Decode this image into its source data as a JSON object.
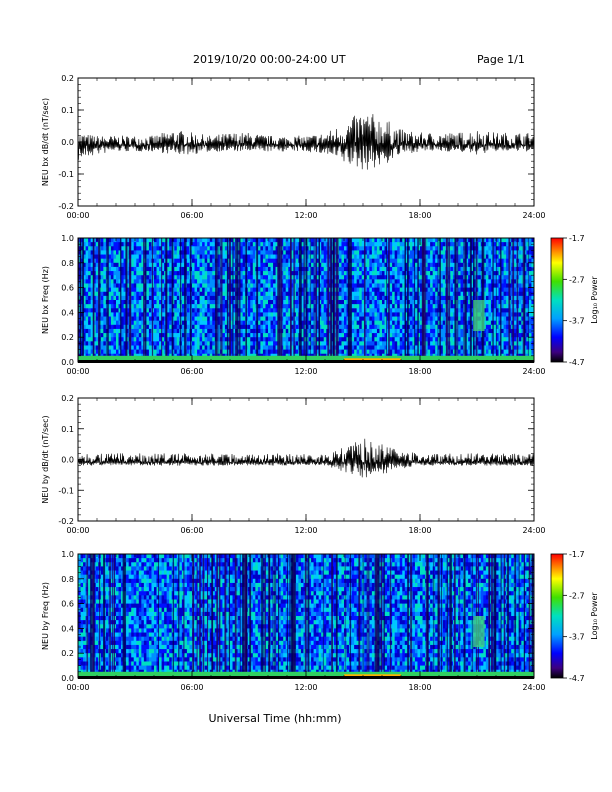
{
  "header": {
    "title": "2019/10/20  00:00-24:00 UT",
    "page": "Page 1/1"
  },
  "xaxis_title": "Universal Time (hh:mm)",
  "chart_data": [
    {
      "type": "line",
      "ylabel": "NEU bx dB/dt (nT/sec)",
      "xlim": [
        0,
        24
      ],
      "ylim": [
        -0.2,
        0.2
      ],
      "x_ticks": [
        "00:00",
        "06:00",
        "12:00",
        "18:00",
        "24:00"
      ],
      "y_ticks": [
        "-0.2",
        "-0.1",
        "0.0",
        "0.1",
        "0.2"
      ],
      "x": [
        0,
        1,
        2,
        3,
        4,
        5,
        6,
        7,
        8,
        9,
        10,
        11,
        12,
        13,
        14,
        15,
        16,
        17,
        18,
        19,
        20,
        21,
        22,
        23,
        24
      ],
      "upper_envelope": [
        0.03,
        0.02,
        0.02,
        0.02,
        0.02,
        0.04,
        0.03,
        0.02,
        0.03,
        0.03,
        0.02,
        0.02,
        0.02,
        0.03,
        0.06,
        0.1,
        0.08,
        0.04,
        0.03,
        0.03,
        0.03,
        0.04,
        0.03,
        0.03,
        0.03
      ],
      "lower_envelope": [
        -0.06,
        -0.04,
        -0.03,
        -0.03,
        -0.03,
        -0.04,
        -0.04,
        -0.03,
        -0.03,
        -0.03,
        -0.03,
        -0.03,
        -0.03,
        -0.04,
        -0.07,
        -0.09,
        -0.08,
        -0.04,
        -0.03,
        -0.03,
        -0.03,
        -0.04,
        -0.03,
        -0.03,
        -0.03
      ]
    },
    {
      "type": "heatmap",
      "ylabel": "NEU bx Freq (Hz)",
      "xlim": [
        0,
        24
      ],
      "ylim": [
        0,
        1.0
      ],
      "x_ticks": [
        "00:00",
        "06:00",
        "12:00",
        "18:00",
        "24:00"
      ],
      "y_ticks": [
        "0.0",
        "0.2",
        "0.4",
        "0.6",
        "0.8",
        "1.0"
      ],
      "colorbar": {
        "label": "Log₁₀ Power",
        "ticks": [
          "-1.7",
          "-2.7",
          "-3.7",
          "-4.7"
        ],
        "range": [
          -4.7,
          -1.7
        ]
      },
      "description_values": {
        "background_level": -3.7,
        "low_freq_band_level": -2.7,
        "peak_time_range": [
          14,
          17
        ],
        "secondary_feature_time": 21,
        "secondary_feature_freq": [
          0.25,
          0.5
        ]
      }
    },
    {
      "type": "line",
      "ylabel": "NEU by dB/dt (nT/sec)",
      "xlim": [
        0,
        24
      ],
      "ylim": [
        -0.2,
        0.2
      ],
      "x_ticks": [
        "00:00",
        "06:00",
        "12:00",
        "18:00",
        "24:00"
      ],
      "y_ticks": [
        "-0.2",
        "-0.1",
        "0.0",
        "0.1",
        "0.2"
      ],
      "x": [
        0,
        1,
        2,
        3,
        4,
        5,
        6,
        7,
        8,
        9,
        10,
        11,
        12,
        13,
        14,
        15,
        16,
        17,
        18,
        19,
        20,
        21,
        22,
        23,
        24
      ],
      "upper_envelope": [
        0.02,
        0.02,
        0.02,
        0.02,
        0.02,
        0.02,
        0.02,
        0.02,
        0.02,
        0.02,
        0.02,
        0.02,
        0.02,
        0.02,
        0.04,
        0.07,
        0.05,
        0.03,
        0.02,
        0.02,
        0.02,
        0.02,
        0.02,
        0.02,
        0.02
      ],
      "lower_envelope": [
        -0.02,
        -0.02,
        -0.02,
        -0.02,
        -0.02,
        -0.02,
        -0.02,
        -0.02,
        -0.02,
        -0.02,
        -0.02,
        -0.02,
        -0.02,
        -0.02,
        -0.04,
        -0.06,
        -0.05,
        -0.03,
        -0.02,
        -0.02,
        -0.02,
        -0.02,
        -0.02,
        -0.02,
        -0.02
      ]
    },
    {
      "type": "heatmap",
      "ylabel": "NEU by Freq (Hz)",
      "xlim": [
        0,
        24
      ],
      "ylim": [
        0,
        1.0
      ],
      "x_ticks": [
        "00:00",
        "06:00",
        "12:00",
        "18:00",
        "24:00"
      ],
      "y_ticks": [
        "0.0",
        "0.2",
        "0.4",
        "0.6",
        "0.8",
        "1.0"
      ],
      "colorbar": {
        "label": "Log₁₀ Power",
        "ticks": [
          "-1.7",
          "-2.7",
          "-3.7",
          "-4.7"
        ],
        "range": [
          -4.7,
          -1.7
        ]
      },
      "description_values": {
        "background_level": -3.7,
        "low_freq_band_level": -2.7,
        "peak_time_range": [
          14,
          17
        ],
        "secondary_feature_time": 21,
        "secondary_feature_freq": [
          0.25,
          0.5
        ]
      }
    }
  ]
}
